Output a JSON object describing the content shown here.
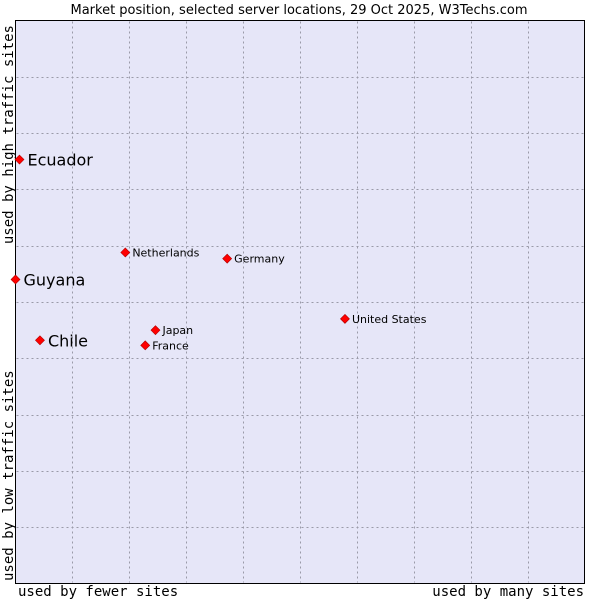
{
  "chart_data": {
    "type": "scatter",
    "title": "Market position, selected server locations, 29 Oct 2025, W3Techs.com",
    "xlabel_low": "used by fewer sites",
    "xlabel_high": "used by many sites",
    "ylabel_low": "used by low traffic sites",
    "ylabel_high": "used by high traffic sites",
    "xlim": [
      0,
      10
    ],
    "ylim": [
      0,
      10
    ],
    "grid": true,
    "point_color": "#ff0000",
    "plot_background": "#e6e6f8",
    "points": [
      {
        "label": "Ecuador",
        "x": 0.07,
        "y": 7.53,
        "emphasis": true
      },
      {
        "label": "Guyana",
        "x": 0.0,
        "y": 5.4,
        "emphasis": true
      },
      {
        "label": "Chile",
        "x": 0.43,
        "y": 4.32,
        "emphasis": true
      },
      {
        "label": "Netherlands",
        "x": 1.93,
        "y": 5.88,
        "emphasis": false
      },
      {
        "label": "Germany",
        "x": 3.72,
        "y": 5.77,
        "emphasis": false
      },
      {
        "label": "United States",
        "x": 5.79,
        "y": 4.7,
        "emphasis": false
      },
      {
        "label": "Japan",
        "x": 2.46,
        "y": 4.5,
        "emphasis": false
      },
      {
        "label": "France",
        "x": 2.28,
        "y": 4.23,
        "emphasis": false
      }
    ]
  }
}
